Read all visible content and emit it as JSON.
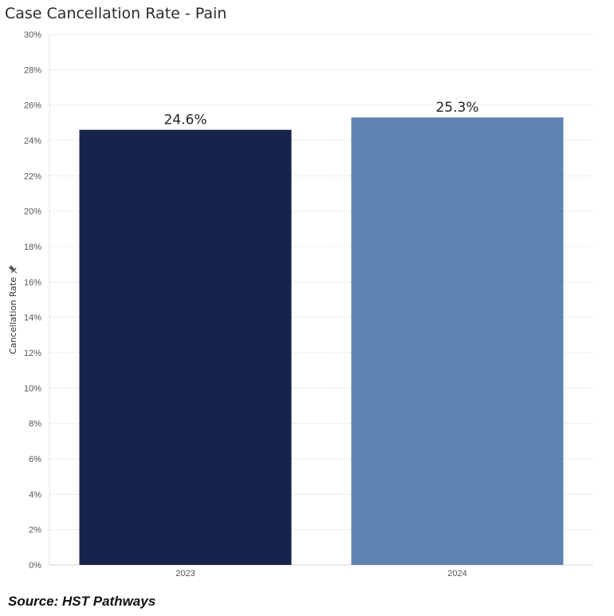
{
  "chart_data": {
    "type": "bar",
    "title": "Case Cancellation Rate - Pain",
    "xlabel": "",
    "ylabel": "Cancellation Rate",
    "categories": [
      "2023",
      "2024"
    ],
    "values": [
      24.6,
      25.3
    ],
    "data_labels": [
      "24.6%",
      "25.3%"
    ],
    "colors": [
      "#16234b",
      "#5f83b1"
    ],
    "ylim": [
      0,
      30
    ],
    "yticks": [
      0,
      2,
      4,
      6,
      8,
      10,
      12,
      14,
      16,
      18,
      20,
      22,
      24,
      26,
      28,
      30
    ],
    "ytick_labels": [
      "0%",
      "2%",
      "4%",
      "6%",
      "8%",
      "10%",
      "12%",
      "14%",
      "16%",
      "18%",
      "20%",
      "22%",
      "24%",
      "26%",
      "28%",
      "30%"
    ],
    "grid": true,
    "legend": "none"
  },
  "source": "Source: HST Pathways",
  "ylabel_icon": "pin-icon"
}
